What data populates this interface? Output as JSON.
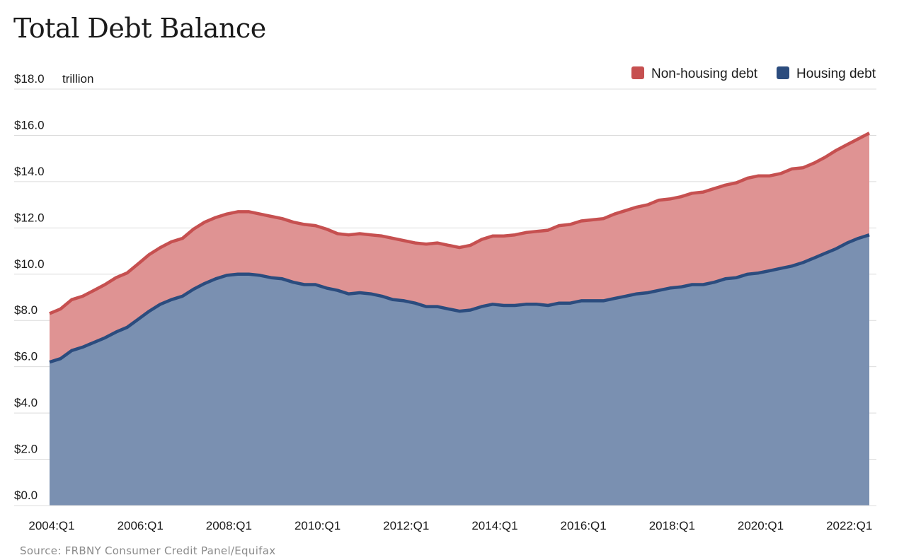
{
  "chart_data": {
    "type": "area",
    "title": "Total Debt Balance",
    "unit_label": "trillion",
    "source": "Source: FRBNY Consumer Credit Panel/Equifax",
    "xlabel": "",
    "ylabel": "",
    "ylim": [
      0,
      18
    ],
    "y_ticks": [
      "$0.0",
      "$2.0",
      "$4.0",
      "$6.0",
      "$8.0",
      "$10.0",
      "$12.0",
      "$14.0",
      "$16.0",
      "$18.0"
    ],
    "x_ticks": [
      "2004:Q1",
      "2006:Q1",
      "2008:Q1",
      "2010:Q1",
      "2012:Q1",
      "2014:Q1",
      "2016:Q1",
      "2018:Q1",
      "2020:Q1",
      "2022:Q1"
    ],
    "stacked": true,
    "grid": true,
    "legend_position": "top-right",
    "x_start": "2004:Q1",
    "x_end": "2022:Q1",
    "series": [
      {
        "name": "Housing debt",
        "color": "#2b4c7e",
        "fill": "#7a90b1",
        "values": [
          6.2,
          6.35,
          6.7,
          6.85,
          7.05,
          7.25,
          7.5,
          7.7,
          8.05,
          8.4,
          8.7,
          8.9,
          9.05,
          9.35,
          9.6,
          9.8,
          9.95,
          10.0,
          10.0,
          9.95,
          9.85,
          9.8,
          9.65,
          9.55,
          9.55,
          9.4,
          9.3,
          9.15,
          9.2,
          9.15,
          9.05,
          8.9,
          8.85,
          8.75,
          8.6,
          8.6,
          8.5,
          8.4,
          8.45,
          8.6,
          8.7,
          8.65,
          8.65,
          8.7,
          8.7,
          8.65,
          8.75,
          8.75,
          8.85,
          8.85,
          8.85,
          8.95,
          9.05,
          9.15,
          9.2,
          9.3,
          9.4,
          9.45,
          9.55,
          9.55,
          9.65,
          9.8,
          9.85,
          10.0,
          10.05,
          10.15,
          10.25,
          10.35,
          10.5,
          10.7,
          10.9,
          11.1,
          11.35,
          11.55,
          11.7
        ]
      },
      {
        "name": "Non-housing debt",
        "color": "#c65050",
        "fill": "#df9393",
        "values": [
          2.1,
          2.15,
          2.2,
          2.2,
          2.25,
          2.3,
          2.35,
          2.35,
          2.4,
          2.45,
          2.45,
          2.5,
          2.5,
          2.6,
          2.65,
          2.65,
          2.65,
          2.7,
          2.7,
          2.65,
          2.65,
          2.6,
          2.6,
          2.6,
          2.55,
          2.55,
          2.45,
          2.55,
          2.55,
          2.55,
          2.6,
          2.65,
          2.6,
          2.6,
          2.7,
          2.75,
          2.75,
          2.75,
          2.8,
          2.9,
          2.95,
          3.0,
          3.05,
          3.1,
          3.15,
          3.25,
          3.35,
          3.4,
          3.45,
          3.5,
          3.55,
          3.65,
          3.7,
          3.75,
          3.8,
          3.9,
          3.85,
          3.9,
          3.95,
          4.0,
          4.05,
          4.05,
          4.1,
          4.15,
          4.2,
          4.1,
          4.1,
          4.2,
          4.1,
          4.1,
          4.15,
          4.25,
          4.25,
          4.3,
          4.4
        ]
      }
    ]
  }
}
